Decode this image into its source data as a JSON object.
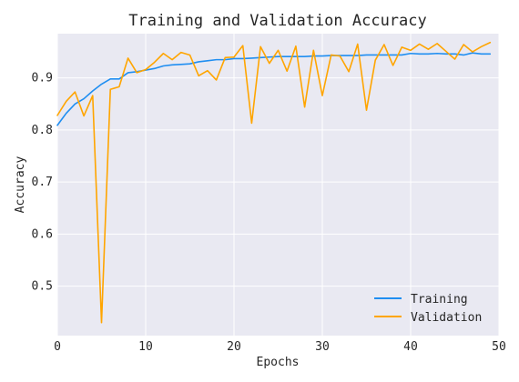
{
  "chart_data": {
    "type": "line",
    "title": "Training and Validation Accuracy",
    "xlabel": "Epochs",
    "ylabel": "Accuracy",
    "xlim": [
      0,
      50
    ],
    "ylim": [
      0.405,
      0.985
    ],
    "xticks": [
      0,
      10,
      20,
      30,
      40,
      50
    ],
    "yticks": [
      0.5,
      0.6,
      0.7,
      0.8,
      0.9
    ],
    "grid": true,
    "legend_position": "bottom-right",
    "x": [
      0,
      1,
      2,
      3,
      4,
      5,
      6,
      7,
      8,
      9,
      10,
      11,
      12,
      13,
      14,
      15,
      16,
      17,
      18,
      19,
      20,
      21,
      22,
      23,
      24,
      25,
      26,
      27,
      28,
      29,
      30,
      31,
      32,
      33,
      34,
      35,
      36,
      37,
      38,
      39,
      40,
      41,
      42,
      43,
      44,
      45,
      46,
      47,
      48,
      49
    ],
    "series": [
      {
        "name": "Training",
        "color": "#1f8ef1",
        "values": [
          0.809,
          0.832,
          0.85,
          0.86,
          0.875,
          0.888,
          0.898,
          0.898,
          0.91,
          0.912,
          0.915,
          0.918,
          0.923,
          0.925,
          0.926,
          0.927,
          0.931,
          0.933,
          0.935,
          0.935,
          0.937,
          0.937,
          0.938,
          0.939,
          0.94,
          0.941,
          0.941,
          0.941,
          0.941,
          0.942,
          0.942,
          0.943,
          0.943,
          0.943,
          0.943,
          0.944,
          0.944,
          0.944,
          0.944,
          0.944,
          0.947,
          0.946,
          0.946,
          0.947,
          0.946,
          0.946,
          0.944,
          0.948,
          0.946,
          0.946
        ]
      },
      {
        "name": "Validation",
        "color": "#ffa500",
        "values": [
          0.828,
          0.855,
          0.873,
          0.827,
          0.866,
          0.43,
          0.878,
          0.883,
          0.938,
          0.91,
          0.916,
          0.93,
          0.947,
          0.935,
          0.949,
          0.944,
          0.904,
          0.914,
          0.896,
          0.939,
          0.94,
          0.962,
          0.813,
          0.96,
          0.928,
          0.953,
          0.913,
          0.961,
          0.844,
          0.953,
          0.866,
          0.944,
          0.942,
          0.912,
          0.965,
          0.838,
          0.934,
          0.964,
          0.924,
          0.959,
          0.953,
          0.965,
          0.955,
          0.966,
          0.951,
          0.936,
          0.964,
          0.95,
          0.96,
          0.968
        ]
      }
    ]
  },
  "colors": {
    "plot_background": "#e9e9f2",
    "grid": "#ffffff",
    "text": "#262626"
  }
}
